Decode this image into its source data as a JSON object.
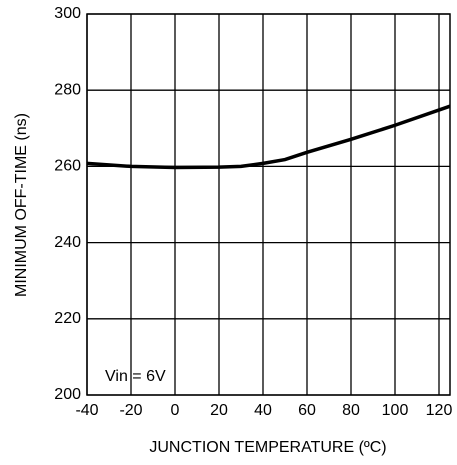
{
  "chart_data": {
    "type": "line",
    "xlabel": "JUNCTION TEMPERATURE (ºC)",
    "ylabel": "MINIMUM OFF-TIME (ns)",
    "annotation": "Vin = 6V",
    "x": [
      -40,
      -20,
      0,
      20,
      30,
      40,
      50,
      60,
      80,
      100,
      125
    ],
    "values": [
      260.8,
      260,
      259.7,
      259.8,
      260,
      260.8,
      261.8,
      263.7,
      267.1,
      270.8,
      275.8
    ],
    "color": "#000000",
    "xlim": [
      -40,
      125
    ],
    "xticks": [
      -40,
      -20,
      0,
      20,
      40,
      60,
      80,
      100,
      120
    ],
    "ylim": [
      200,
      300
    ],
    "yticks": [
      200,
      220,
      240,
      260,
      280,
      300
    ],
    "grid": true
  }
}
